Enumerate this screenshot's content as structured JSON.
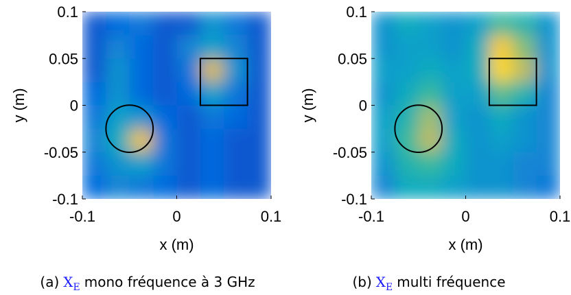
{
  "chart_data": [
    {
      "type": "heatmap",
      "xlabel": "x (m)",
      "ylabel": "y (m)",
      "colormap": "parula",
      "xlim": [
        -0.1,
        0.1
      ],
      "ylim": [
        -0.1,
        0.1
      ],
      "xticks": [
        -0.1,
        0,
        0.1
      ],
      "yticks": [
        -0.1,
        -0.05,
        0,
        0.05,
        0.1
      ],
      "z": [
        [
          0.1,
          0.15,
          0.2,
          0.1,
          0.1,
          0.3,
          0.2,
          0.1
        ],
        [
          0.1,
          0.25,
          0.15,
          0.1,
          0.25,
          0.35,
          0.25,
          0.1
        ],
        [
          0.1,
          0.3,
          0.15,
          0.1,
          0.2,
          0.75,
          0.3,
          0.1
        ],
        [
          0.15,
          0.3,
          0.15,
          0.1,
          0.15,
          0.35,
          0.2,
          0.1
        ],
        [
          0.2,
          0.35,
          0.3,
          0.15,
          0.1,
          0.2,
          0.15,
          0.1
        ],
        [
          0.25,
          0.4,
          0.8,
          0.2,
          0.1,
          0.15,
          0.1,
          0.1
        ],
        [
          0.2,
          0.3,
          0.35,
          0.2,
          0.1,
          0.15,
          0.1,
          0.1
        ],
        [
          0.15,
          0.25,
          0.2,
          0.15,
          0.1,
          0.15,
          0.1,
          0.1
        ]
      ],
      "circle": {
        "center": [
          -0.05,
          -0.025
        ],
        "radius": 0.025
      },
      "square": {
        "x": [
          0.025,
          0.075
        ],
        "y": [
          0,
          0.05
        ]
      },
      "caption": {
        "label": "(a)",
        "symbol": "X",
        "subscript": "E",
        "text": "mono fréquence à 3 GHz"
      }
    },
    {
      "type": "heatmap",
      "xlabel": "x (m)",
      "ylabel": "y (m)",
      "colormap": "parula",
      "xlim": [
        -0.1,
        0.1
      ],
      "ylim": [
        -0.1,
        0.1
      ],
      "xticks": [
        -0.1,
        0,
        0.1
      ],
      "yticks": [
        -0.1,
        -0.05,
        0,
        0.05,
        0.1
      ],
      "z": [
        [
          0.3,
          0.4,
          0.35,
          0.3,
          0.35,
          0.5,
          0.45,
          0.3
        ],
        [
          0.3,
          0.35,
          0.35,
          0.3,
          0.4,
          0.85,
          0.6,
          0.3
        ],
        [
          0.35,
          0.35,
          0.4,
          0.35,
          0.4,
          0.9,
          0.7,
          0.3
        ],
        [
          0.3,
          0.4,
          0.5,
          0.35,
          0.35,
          0.55,
          0.45,
          0.25
        ],
        [
          0.35,
          0.45,
          0.65,
          0.35,
          0.3,
          0.4,
          0.3,
          0.25
        ],
        [
          0.35,
          0.5,
          0.7,
          0.4,
          0.3,
          0.35,
          0.3,
          0.25
        ],
        [
          0.3,
          0.45,
          0.5,
          0.4,
          0.3,
          0.3,
          0.25,
          0.25
        ],
        [
          0.25,
          0.4,
          0.4,
          0.35,
          0.3,
          0.3,
          0.25,
          0.2
        ]
      ],
      "circle": {
        "center": [
          -0.05,
          -0.025
        ],
        "radius": 0.025
      },
      "square": {
        "x": [
          0.025,
          0.075
        ],
        "y": [
          0,
          0.05
        ]
      },
      "caption": {
        "label": "(b)",
        "symbol": "X",
        "subscript": "E",
        "text": "multi fréquence"
      }
    }
  ]
}
